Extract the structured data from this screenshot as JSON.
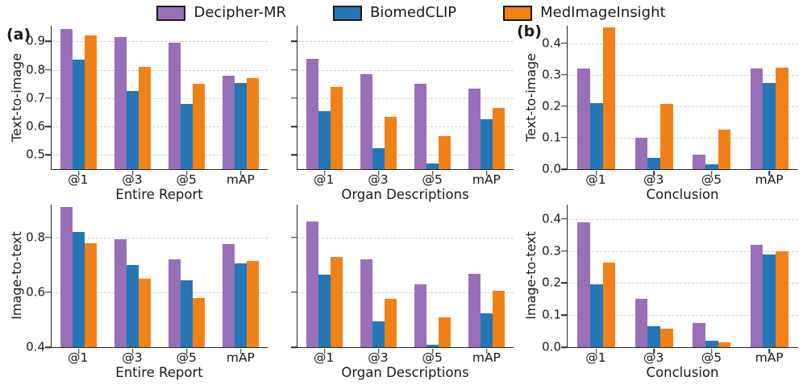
{
  "figure": {
    "panel_labels": {
      "a": "(a)",
      "b": "(b)"
    }
  },
  "legend": {
    "position": "top-center",
    "entries": [
      {
        "label": "Decipher-MR",
        "color": "#9770b9"
      },
      {
        "label": "BiomedCLIP",
        "color": "#2477b4"
      },
      {
        "label": "MedImageInsight",
        "color": "#f08116"
      }
    ]
  },
  "axis_style": {
    "grid": "dashed-horizontal",
    "gridline_color": "#d2d2d2",
    "spine_color": "#262626"
  },
  "chart_data": [
    {
      "type": "bar",
      "panel": "top-left",
      "ylabel": "Text-to-image",
      "xlabel": "Entire Report",
      "categories": [
        "@1",
        "@3",
        "@5",
        "mAP"
      ],
      "series": [
        {
          "name": "Decipher-MR",
          "values": [
            0.945,
            0.915,
            0.895,
            0.78
          ]
        },
        {
          "name": "BiomedCLIP",
          "values": [
            0.835,
            0.725,
            0.68,
            0.755
          ]
        },
        {
          "name": "MedImageInsight",
          "values": [
            0.92,
            0.81,
            0.75,
            0.77
          ]
        }
      ],
      "ylim": [
        0.45,
        0.955
      ],
      "yticks": [
        0.5,
        0.6,
        0.7,
        0.8,
        0.9
      ],
      "ytick_labels": [
        "0.5",
        "0.6",
        "0.7",
        "0.8",
        "0.9"
      ],
      "show_ytick_labels": true,
      "show_ylabel": true
    },
    {
      "type": "bar",
      "panel": "top-middle",
      "ylabel": "",
      "xlabel": "Organ Descriptions",
      "categories": [
        "@1",
        "@3",
        "@5",
        "mAP"
      ],
      "series": [
        {
          "name": "Decipher-MR",
          "values": [
            0.84,
            0.785,
            0.75,
            0.735
          ]
        },
        {
          "name": "BiomedCLIP",
          "values": [
            0.655,
            0.525,
            0.47,
            0.625
          ]
        },
        {
          "name": "MedImageInsight",
          "values": [
            0.74,
            0.635,
            0.565,
            0.665
          ]
        }
      ],
      "ylim": [
        0.45,
        0.955
      ],
      "yticks": [
        0.5,
        0.6,
        0.7,
        0.8,
        0.9
      ],
      "ytick_labels": [
        "0.5",
        "0.6",
        "0.7",
        "0.8",
        "0.9"
      ],
      "show_ytick_labels": false,
      "show_ylabel": false
    },
    {
      "type": "bar",
      "panel": "top-right",
      "ylabel": "Text-to-image",
      "xlabel": "Conclusion",
      "categories": [
        "@1",
        "@3",
        "@5",
        "mAP"
      ],
      "series": [
        {
          "name": "Decipher-MR",
          "values": [
            0.32,
            0.101,
            0.046,
            0.32
          ]
        },
        {
          "name": "BiomedCLIP",
          "values": [
            0.21,
            0.037,
            0.015,
            0.273
          ]
        },
        {
          "name": "MedImageInsight",
          "values": [
            0.452,
            0.207,
            0.126,
            0.324
          ]
        }
      ],
      "ylim": [
        0.0,
        0.456
      ],
      "yticks": [
        0.0,
        0.1,
        0.2,
        0.3,
        0.4
      ],
      "ytick_labels": [
        "0.0",
        "0.1",
        "0.2",
        "0.3",
        "0.4"
      ],
      "show_ytick_labels": true,
      "show_ylabel": true
    },
    {
      "type": "bar",
      "panel": "bottom-left",
      "ylabel": "Image-to-text",
      "xlabel": "Entire Report",
      "categories": [
        "@1",
        "@3",
        "@5",
        "mAP"
      ],
      "series": [
        {
          "name": "Decipher-MR",
          "values": [
            0.91,
            0.795,
            0.72,
            0.775
          ]
        },
        {
          "name": "BiomedCLIP",
          "values": [
            0.82,
            0.7,
            0.645,
            0.705
          ]
        },
        {
          "name": "MedImageInsight",
          "values": [
            0.78,
            0.65,
            0.58,
            0.715
          ]
        }
      ],
      "ylim": [
        0.4,
        0.92
      ],
      "yticks": [
        0.4,
        0.6,
        0.8
      ],
      "ytick_labels": [
        "0.4",
        "0.6",
        "0.8"
      ],
      "show_ytick_labels": true,
      "show_ylabel": true
    },
    {
      "type": "bar",
      "panel": "bottom-middle",
      "ylabel": "",
      "xlabel": "Organ Descriptions",
      "categories": [
        "@1",
        "@3",
        "@5",
        "mAP"
      ],
      "series": [
        {
          "name": "Decipher-MR",
          "values": [
            0.858,
            0.72,
            0.63,
            0.667
          ]
        },
        {
          "name": "BiomedCLIP",
          "values": [
            0.665,
            0.495,
            0.41,
            0.522
          ]
        },
        {
          "name": "MedImageInsight",
          "values": [
            0.728,
            0.575,
            0.51,
            0.606
          ]
        }
      ],
      "ylim": [
        0.4,
        0.92
      ],
      "yticks": [
        0.4,
        0.6,
        0.8
      ],
      "ytick_labels": [
        "0.4",
        "0.6",
        "0.8"
      ],
      "show_ytick_labels": false,
      "show_ylabel": false
    },
    {
      "type": "bar",
      "panel": "bottom-right",
      "ylabel": "Image-to-text",
      "xlabel": "Conclusion",
      "categories": [
        "@1",
        "@3",
        "@5",
        "mAP"
      ],
      "series": [
        {
          "name": "Decipher-MR",
          "values": [
            0.39,
            0.152,
            0.075,
            0.32
          ]
        },
        {
          "name": "BiomedCLIP",
          "values": [
            0.195,
            0.065,
            0.021,
            0.29
          ]
        },
        {
          "name": "MedImageInsight",
          "values": [
            0.265,
            0.058,
            0.015,
            0.3
          ]
        }
      ],
      "ylim": [
        0.0,
        0.445
      ],
      "yticks": [
        0.0,
        0.1,
        0.2,
        0.3,
        0.4
      ],
      "ytick_labels": [
        "0.0",
        "0.1",
        "0.2",
        "0.3",
        "0.4"
      ],
      "show_ytick_labels": true,
      "show_ylabel": true
    }
  ]
}
